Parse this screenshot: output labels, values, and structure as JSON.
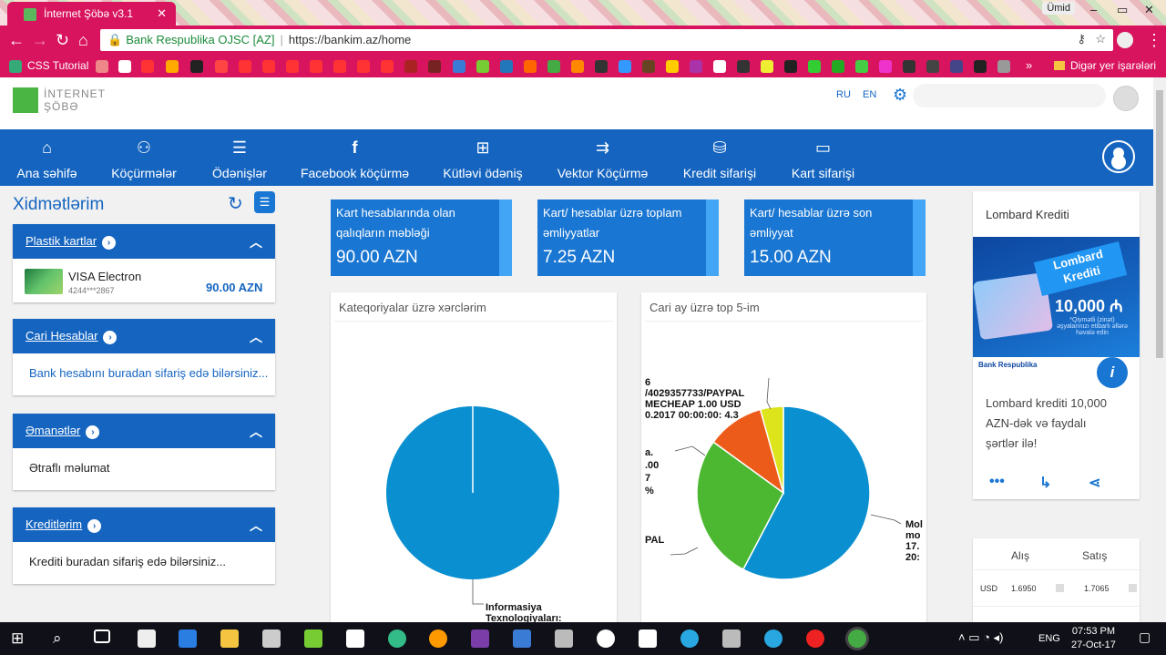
{
  "browser": {
    "tab_title": "İnternet Şöbə v3.1",
    "tab_close": "✕",
    "window_user": "Ümid",
    "url_org": "Bank Respublika OJSC [AZ]",
    "url": "https://bankim.az/home",
    "bookmarks_first": "CSS Tutorial",
    "bookmarks_more": "»",
    "bookmarks_other": "Digər yer işarələri",
    "accent": "#d9145e"
  },
  "header": {
    "logo_line1": "İNTERNET",
    "logo_line2": "ŞÖBƏ",
    "lang_ru": "RU",
    "lang_en": "EN",
    "brand_color": "#1565c0"
  },
  "menu": {
    "items": [
      {
        "label": "Ana səhifə",
        "icon": "home-icon",
        "glyph": "⌂"
      },
      {
        "label": "Köçürmələr",
        "icon": "users-icon",
        "glyph": "⚇"
      },
      {
        "label": "Ödənişlər",
        "icon": "checklist-icon",
        "glyph": "☰"
      },
      {
        "label": "Facebook köçürmə",
        "icon": "facebook-icon",
        "glyph": "f"
      },
      {
        "label": "Kütləvi ödəniş",
        "icon": "bulk-payment-icon",
        "glyph": "⊞"
      },
      {
        "label": "Vektor Köçürmə",
        "icon": "vector-icon",
        "glyph": "⇉"
      },
      {
        "label": "Kredit sifarişi",
        "icon": "coins-icon",
        "glyph": "⛁"
      },
      {
        "label": "Kart sifarişi",
        "icon": "card-icon",
        "glyph": "▭"
      }
    ]
  },
  "services": {
    "title": "Xidmətlərim",
    "panels": [
      {
        "title": "Plastik kartlar"
      },
      {
        "title": "Cari Hesablar",
        "body": "Bank hesabını buradan sifariş edə bilərsiniz..."
      },
      {
        "title": "Əmanətlər",
        "body": "Ətraflı məlumat"
      },
      {
        "title": "Kreditlərim",
        "body": "Krediti buradan sifariş edə bilərsiniz..."
      }
    ],
    "card": {
      "name": "VISA Electron",
      "number": "4244***2867",
      "balance": "90.00 AZN"
    }
  },
  "tiles": [
    {
      "label_line1": "Kart hesablarında olan",
      "label_line2": "qalıqların məbləği",
      "value": "90.00 AZN"
    },
    {
      "label_line1": "Kart/ hesablar üzrə toplam",
      "label_line2": "əmliyyatlar",
      "value": "7.25 AZN"
    },
    {
      "label_line1": "Kart/ hesablar üzrə son",
      "label_line2": "əmliyyat",
      "value": "15.00 AZN"
    }
  ],
  "charts": {
    "left_title": "Kateqoriyalar üzrə xərclərim",
    "right_title": "Cari ay üzrə top 5-im",
    "left_label_line1": "Informasiya",
    "left_label_line2": "Texnologiyaları:",
    "right_label_a_1": "6",
    "right_label_a_2": "/4029357733/PAYPAL",
    "right_label_a_3": "MECHEAP 1.00 USD",
    "right_label_a_4": "0.2017 00:00:00: 4.3",
    "right_label_b_1": "a.",
    "right_label_b_2": ".00",
    "right_label_b_3": "7",
    "right_label_b_4": "%",
    "right_label_c": "PAL",
    "right_label_d_1": "Mol",
    "right_label_d_2": "mo",
    "right_label_d_3": "17.",
    "right_label_d_4": "20:"
  },
  "chart_data": [
    {
      "type": "pie",
      "title": "Kateqoriyalar üzrə xərclərim",
      "categories": [
        "Informasiya Texnologiyaları:"
      ],
      "values": [
        100
      ],
      "colors": [
        "#0a8fd0"
      ]
    },
    {
      "type": "pie",
      "title": "Cari ay üzrə top 5-im",
      "values": [
        57.7,
        27.3,
        10.7,
        4.3
      ],
      "colors": [
        "#0a8fd0",
        "#4cb832",
        "#ec5b1a",
        "#dde41c"
      ]
    }
  ],
  "lombard": {
    "title": "Lombard Krediti",
    "banner_title_1": "Lombard",
    "banner_title_2": "Krediti",
    "banner_amount": "10,000 ₼",
    "banner_note": "*Qiymətli (zinət) əşyalarınızı etibarlı əllərə həvalə edin",
    "banner_bank": "Bank Respublika",
    "info": "i",
    "desc": "Lombard krediti 10,000 AZN-dək və faydalı şərtlər ilə!"
  },
  "rates": {
    "buy": "Alış",
    "sell": "Satış",
    "rows": [
      {
        "cur": "USD",
        "buy": "1.6950",
        "sell": "1.7065"
      }
    ]
  },
  "taskbar": {
    "lang": "ENG",
    "time": "07:53 PM",
    "date": "27-Oct-17"
  }
}
